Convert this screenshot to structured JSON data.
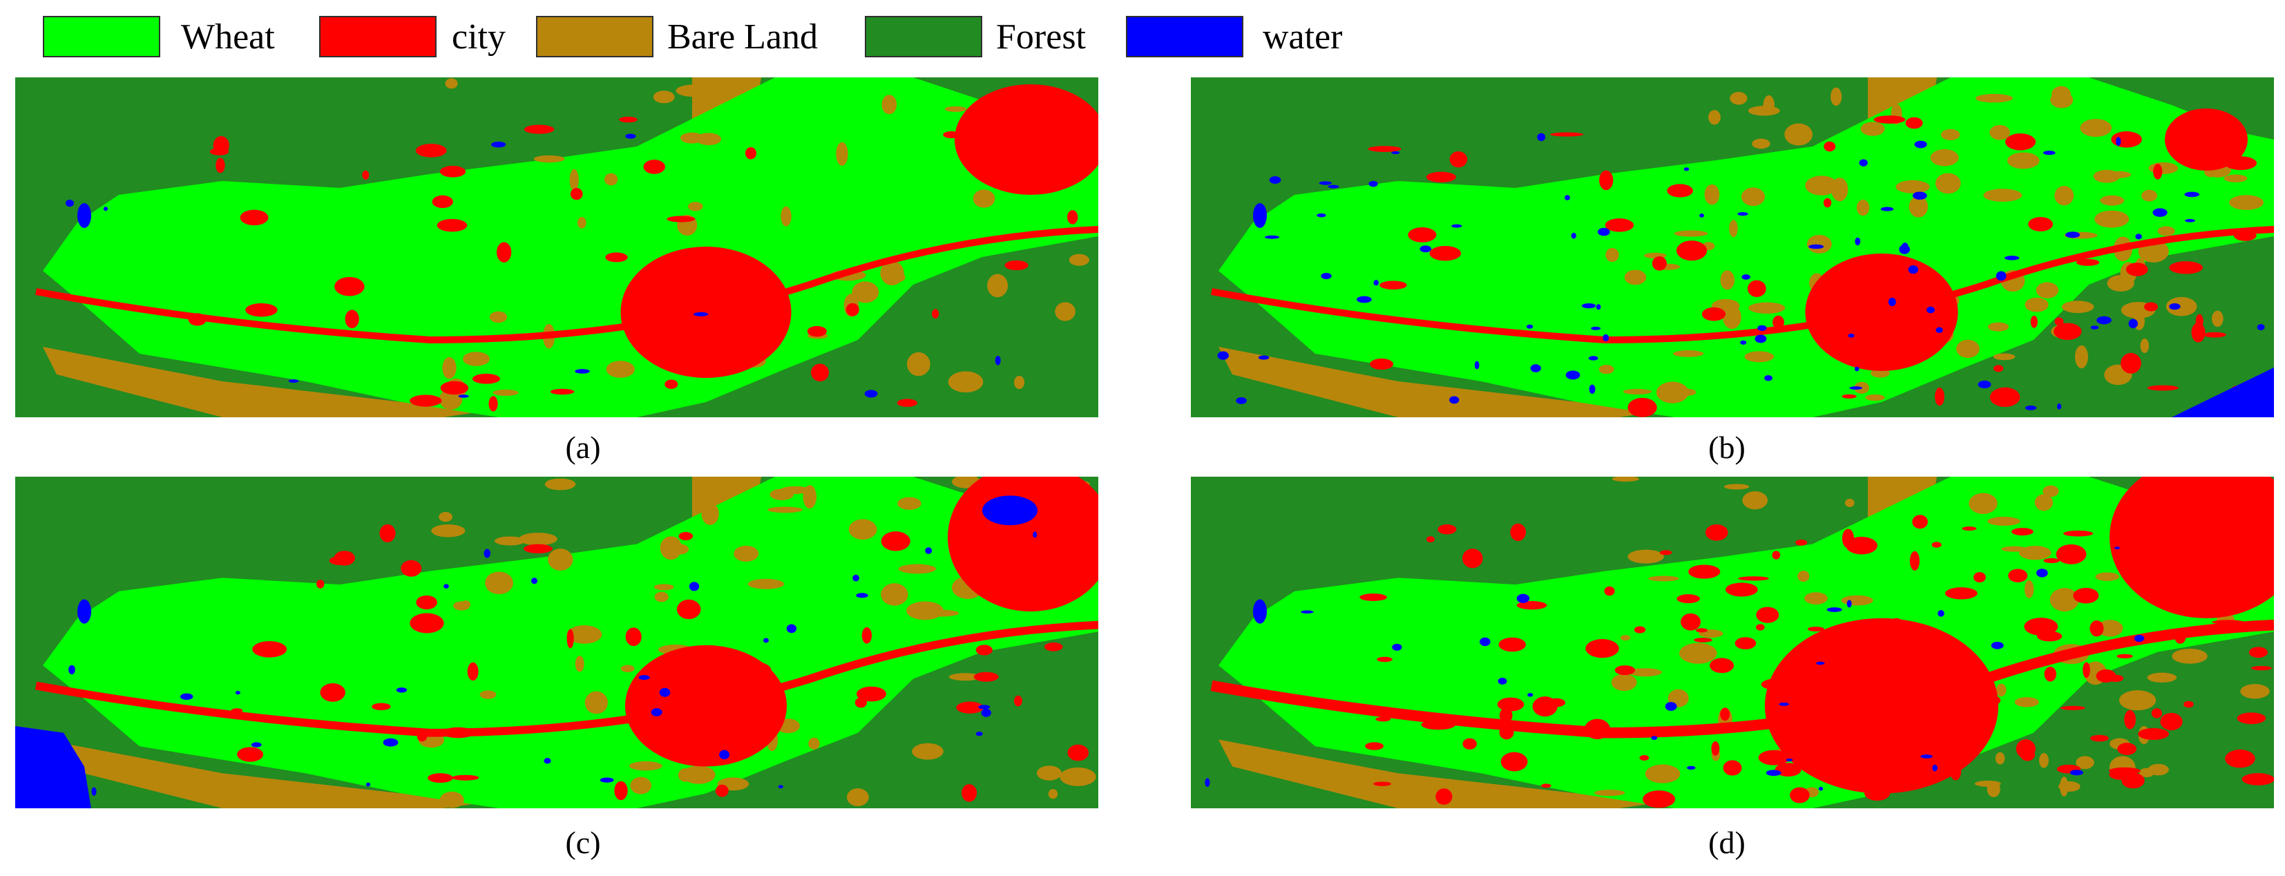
{
  "colors": {
    "wheat": "#00ff00",
    "city": "#ff0000",
    "bare_land": "#b8860b",
    "forest": "#228b22",
    "water": "#0000ff"
  },
  "legend": [
    {
      "key": "wheat",
      "label": "Wheat"
    },
    {
      "key": "city",
      "label": "city"
    },
    {
      "key": "bare_land",
      "label": "Bare Land"
    },
    {
      "key": "forest",
      "label": "Forest"
    },
    {
      "key": "water",
      "label": "water"
    }
  ],
  "panels": [
    {
      "id": "a",
      "caption": "(a)"
    },
    {
      "id": "b",
      "caption": "(b)"
    },
    {
      "id": "c",
      "caption": "(c)"
    },
    {
      "id": "d",
      "caption": "(d)"
    }
  ]
}
